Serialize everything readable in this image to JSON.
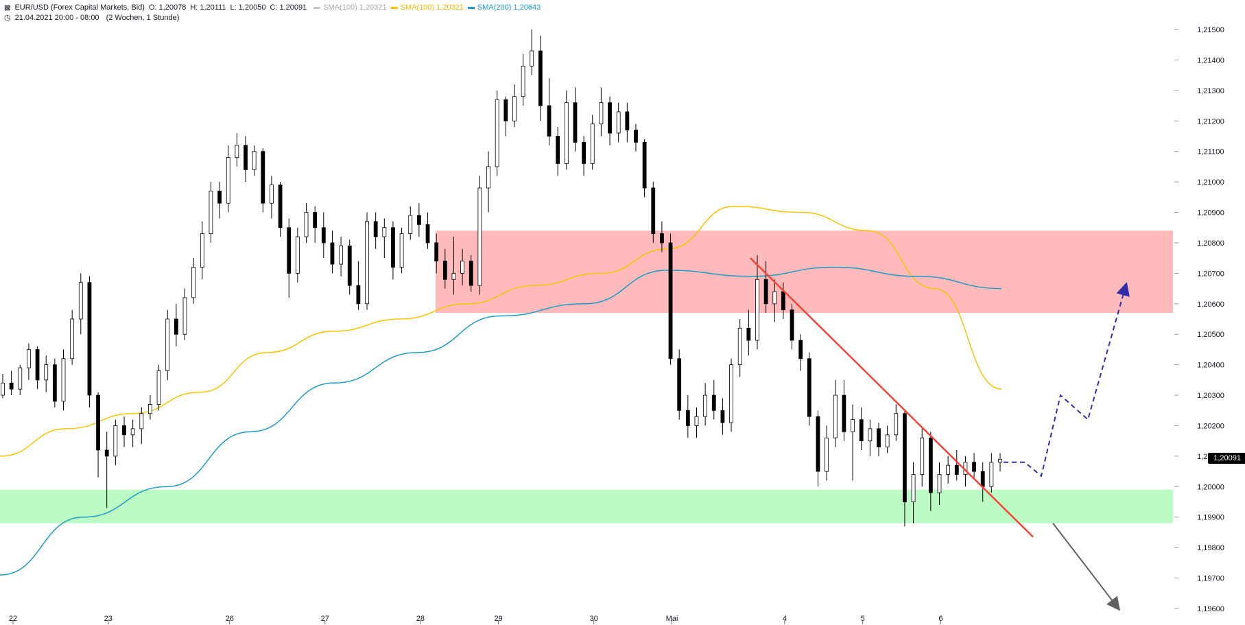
{
  "header": {
    "icon": "candlestick-icon",
    "symbol": "EUR/USD (Forex Capital Markets, Bid)",
    "o_label": "O:",
    "o_value": "1,20078",
    "h_label": "H:",
    "h_value": "1,20111",
    "l_label": "L:",
    "l_value": "1,20050",
    "c_label": "C:",
    "c_value": "1,20091",
    "indicators": [
      {
        "label": "SMA(100)",
        "value": "1,20321",
        "color": "#c8c8c8",
        "muted": true
      },
      {
        "label": "SMA(100)",
        "value": "1,20321",
        "color": "#f5c400",
        "muted": false
      },
      {
        "label": "SMA(200)",
        "value": "1,20643",
        "color": "#1a9bc4",
        "muted": false
      }
    ],
    "clock_icon": "clock-icon",
    "range": "21.04.2021 20:00 - 08:00",
    "period": "(2 Wochen, 1 Stunde)"
  },
  "price_tag": "1,20091",
  "chart_data": {
    "type": "candlestick",
    "y_axis": {
      "ylim": [
        1.1958,
        1.2155
      ],
      "ticks": [
        1.196,
        1.197,
        1.198,
        1.199,
        1.2,
        1.201,
        1.202,
        1.203,
        1.204,
        1.205,
        1.206,
        1.207,
        1.208,
        1.209,
        1.21,
        1.211,
        1.212,
        1.213,
        1.214,
        1.215
      ],
      "tick_labels": [
        "1,19600",
        "1,19700",
        "1,19800",
        "1,19900",
        "1,20000",
        "1,20100",
        "1,20200",
        "1,20300",
        "1,20400",
        "1,20500",
        "1,20600",
        "1,20700",
        "1,20800",
        "1,20900",
        "1,21000",
        "1,21100",
        "1,21200",
        "1,21300",
        "1,21400",
        "1,21500"
      ]
    },
    "x_axis": {
      "ticks": [
        "22",
        "23",
        "26",
        "27",
        "28",
        "29",
        "30",
        "Mai",
        "4",
        "5",
        "6"
      ]
    },
    "candles": [
      {
        "d": "22",
        "o": 1.203,
        "h": 1.2037,
        "l": 1.2029,
        "c": 1.2034
      },
      {
        "d": "22",
        "o": 1.2034,
        "h": 1.2038,
        "l": 1.203,
        "c": 1.2032
      },
      {
        "d": "22",
        "o": 1.2032,
        "h": 1.204,
        "l": 1.203,
        "c": 1.2039
      },
      {
        "d": "22",
        "o": 1.2039,
        "h": 1.2047,
        "l": 1.2035,
        "c": 1.2045
      },
      {
        "d": "22",
        "o": 1.2045,
        "h": 1.2046,
        "l": 1.2032,
        "c": 1.2035
      },
      {
        "d": "22",
        "o": 1.2035,
        "h": 1.2043,
        "l": 1.2031,
        "c": 1.204
      },
      {
        "d": "22",
        "o": 1.204,
        "h": 1.2042,
        "l": 1.2026,
        "c": 1.2028
      },
      {
        "d": "22",
        "o": 1.2028,
        "h": 1.2045,
        "l": 1.2025,
        "c": 1.2042
      },
      {
        "d": "22",
        "o": 1.2042,
        "h": 1.2058,
        "l": 1.204,
        "c": 1.2055
      },
      {
        "d": "22",
        "o": 1.2055,
        "h": 1.207,
        "l": 1.205,
        "c": 1.2067
      },
      {
        "d": "22",
        "o": 1.2067,
        "h": 1.2069,
        "l": 1.2026,
        "c": 1.203
      },
      {
        "d": "22",
        "o": 1.203,
        "h": 1.2031,
        "l": 1.2003,
        "c": 1.2012
      },
      {
        "d": "23",
        "o": 1.2012,
        "h": 1.2018,
        "l": 1.1993,
        "c": 1.201
      },
      {
        "d": "23",
        "o": 1.201,
        "h": 1.2022,
        "l": 1.2007,
        "c": 1.202
      },
      {
        "d": "23",
        "o": 1.202,
        "h": 1.2023,
        "l": 1.2013,
        "c": 1.2017
      },
      {
        "d": "23",
        "o": 1.2017,
        "h": 1.2022,
        "l": 1.2013,
        "c": 1.2019
      },
      {
        "d": "23",
        "o": 1.2019,
        "h": 1.2026,
        "l": 1.2014,
        "c": 1.2024
      },
      {
        "d": "23",
        "o": 1.2024,
        "h": 1.203,
        "l": 1.2022,
        "c": 1.2027
      },
      {
        "d": "23",
        "o": 1.2027,
        "h": 1.204,
        "l": 1.2025,
        "c": 1.2038
      },
      {
        "d": "23",
        "o": 1.2038,
        "h": 1.2058,
        "l": 1.2035,
        "c": 1.2055
      },
      {
        "d": "23",
        "o": 1.2055,
        "h": 1.206,
        "l": 1.2046,
        "c": 1.205
      },
      {
        "d": "23",
        "o": 1.205,
        "h": 1.2065,
        "l": 1.2048,
        "c": 1.2062
      },
      {
        "d": "23",
        "o": 1.2062,
        "h": 1.2075,
        "l": 1.206,
        "c": 1.2072
      },
      {
        "d": "23",
        "o": 1.2072,
        "h": 1.2087,
        "l": 1.2068,
        "c": 1.2083
      },
      {
        "d": "23",
        "o": 1.2083,
        "h": 1.21,
        "l": 1.208,
        "c": 1.2097
      },
      {
        "d": "23",
        "o": 1.2097,
        "h": 1.21,
        "l": 1.2088,
        "c": 1.2093
      },
      {
        "d": "26",
        "o": 1.2093,
        "h": 1.2112,
        "l": 1.209,
        "c": 1.2108
      },
      {
        "d": "26",
        "o": 1.2108,
        "h": 1.2116,
        "l": 1.2105,
        "c": 1.2112
      },
      {
        "d": "26",
        "o": 1.2112,
        "h": 1.2115,
        "l": 1.21,
        "c": 1.2104
      },
      {
        "d": "26",
        "o": 1.2104,
        "h": 1.2112,
        "l": 1.2102,
        "c": 1.211
      },
      {
        "d": "26",
        "o": 1.211,
        "h": 1.2111,
        "l": 1.209,
        "c": 1.2093
      },
      {
        "d": "26",
        "o": 1.2093,
        "h": 1.2102,
        "l": 1.2088,
        "c": 1.2099
      },
      {
        "d": "26",
        "o": 1.2099,
        "h": 1.21,
        "l": 1.2082,
        "c": 1.2085
      },
      {
        "d": "26",
        "o": 1.2085,
        "h": 1.2088,
        "l": 1.2062,
        "c": 1.207
      },
      {
        "d": "26",
        "o": 1.207,
        "h": 1.2085,
        "l": 1.2067,
        "c": 1.2082
      },
      {
        "d": "26",
        "o": 1.2082,
        "h": 1.2093,
        "l": 1.208,
        "c": 1.209
      },
      {
        "d": "26",
        "o": 1.209,
        "h": 1.2092,
        "l": 1.208,
        "c": 1.2085
      },
      {
        "d": "27",
        "o": 1.2085,
        "h": 1.209,
        "l": 1.2075,
        "c": 1.208
      },
      {
        "d": "27",
        "o": 1.208,
        "h": 1.2084,
        "l": 1.207,
        "c": 1.2073
      },
      {
        "d": "27",
        "o": 1.2073,
        "h": 1.2082,
        "l": 1.2069,
        "c": 1.2079
      },
      {
        "d": "27",
        "o": 1.2079,
        "h": 1.2081,
        "l": 1.2063,
        "c": 1.2066
      },
      {
        "d": "27",
        "o": 1.2066,
        "h": 1.2074,
        "l": 1.2058,
        "c": 1.206
      },
      {
        "d": "27",
        "o": 1.206,
        "h": 1.209,
        "l": 1.2058,
        "c": 1.2087
      },
      {
        "d": "27",
        "o": 1.2087,
        "h": 1.209,
        "l": 1.2078,
        "c": 1.2082
      },
      {
        "d": "27",
        "o": 1.2082,
        "h": 1.2088,
        "l": 1.2075,
        "c": 1.2085
      },
      {
        "d": "27",
        "o": 1.2085,
        "h": 1.2087,
        "l": 1.2068,
        "c": 1.2072
      },
      {
        "d": "27",
        "o": 1.2072,
        "h": 1.2085,
        "l": 1.207,
        "c": 1.2083
      },
      {
        "d": "27",
        "o": 1.2083,
        "h": 1.2092,
        "l": 1.2081,
        "c": 1.2089
      },
      {
        "d": "28",
        "o": 1.2089,
        "h": 1.2093,
        "l": 1.2082,
        "c": 1.2086
      },
      {
        "d": "28",
        "o": 1.2086,
        "h": 1.209,
        "l": 1.2078,
        "c": 1.208
      },
      {
        "d": "28",
        "o": 1.208,
        "h": 1.2083,
        "l": 1.207,
        "c": 1.2074
      },
      {
        "d": "28",
        "o": 1.2074,
        "h": 1.2078,
        "l": 1.2065,
        "c": 1.2068
      },
      {
        "d": "28",
        "o": 1.2068,
        "h": 1.2082,
        "l": 1.2063,
        "c": 1.207
      },
      {
        "d": "28",
        "o": 1.207,
        "h": 1.2078,
        "l": 1.2066,
        "c": 1.2074
      },
      {
        "d": "28",
        "o": 1.2074,
        "h": 1.2076,
        "l": 1.2064,
        "c": 1.2066
      },
      {
        "d": "28",
        "o": 1.2066,
        "h": 1.2102,
        "l": 1.2063,
        "c": 1.2098
      },
      {
        "d": "28",
        "o": 1.2098,
        "h": 1.211,
        "l": 1.209,
        "c": 1.2105
      },
      {
        "d": "29",
        "o": 1.2105,
        "h": 1.213,
        "l": 1.2102,
        "c": 1.2127
      },
      {
        "d": "29",
        "o": 1.2127,
        "h": 1.2128,
        "l": 1.2115,
        "c": 1.212
      },
      {
        "d": "29",
        "o": 1.212,
        "h": 1.2132,
        "l": 1.2118,
        "c": 1.2128
      },
      {
        "d": "29",
        "o": 1.2128,
        "h": 1.2142,
        "l": 1.2125,
        "c": 1.2138
      },
      {
        "d": "29",
        "o": 1.2138,
        "h": 1.215,
        "l": 1.2135,
        "c": 1.2143
      },
      {
        "d": "29",
        "o": 1.2143,
        "h": 1.2148,
        "l": 1.212,
        "c": 1.2125
      },
      {
        "d": "29",
        "o": 1.2125,
        "h": 1.2134,
        "l": 1.2112,
        "c": 1.2115
      },
      {
        "d": "29",
        "o": 1.2115,
        "h": 1.2118,
        "l": 1.2102,
        "c": 1.2106
      },
      {
        "d": "29",
        "o": 1.2106,
        "h": 1.213,
        "l": 1.2104,
        "c": 1.2126
      },
      {
        "d": "29",
        "o": 1.2126,
        "h": 1.2131,
        "l": 1.211,
        "c": 1.2113
      },
      {
        "d": "29",
        "o": 1.2113,
        "h": 1.2115,
        "l": 1.2102,
        "c": 1.2106
      },
      {
        "d": "30",
        "o": 1.2106,
        "h": 1.2122,
        "l": 1.2104,
        "c": 1.2119
      },
      {
        "d": "30",
        "o": 1.2119,
        "h": 1.2131,
        "l": 1.2115,
        "c": 1.2126
      },
      {
        "d": "30",
        "o": 1.2126,
        "h": 1.2128,
        "l": 1.2112,
        "c": 1.2116
      },
      {
        "d": "30",
        "o": 1.2116,
        "h": 1.2126,
        "l": 1.2113,
        "c": 1.2123
      },
      {
        "d": "30",
        "o": 1.2123,
        "h": 1.2126,
        "l": 1.2113,
        "c": 1.2117
      },
      {
        "d": "30",
        "o": 1.2117,
        "h": 1.2119,
        "l": 1.211,
        "c": 1.2113
      },
      {
        "d": "30",
        "o": 1.2113,
        "h": 1.2114,
        "l": 1.2095,
        "c": 1.2098
      },
      {
        "d": "30",
        "o": 1.2098,
        "h": 1.21,
        "l": 1.208,
        "c": 1.2083
      },
      {
        "d": "30",
        "o": 1.2083,
        "h": 1.2087,
        "l": 1.2077,
        "c": 1.208
      },
      {
        "d": "Mai",
        "o": 1.208,
        "h": 1.2083,
        "l": 1.204,
        "c": 1.2042
      },
      {
        "d": "Mai",
        "o": 1.2042,
        "h": 1.2045,
        "l": 1.2022,
        "c": 1.2025
      },
      {
        "d": "Mai",
        "o": 1.2025,
        "h": 1.203,
        "l": 1.2016,
        "c": 1.202
      },
      {
        "d": "Mai",
        "o": 1.202,
        "h": 1.2026,
        "l": 1.2016,
        "c": 1.2023
      },
      {
        "d": "Mai",
        "o": 1.2023,
        "h": 1.2034,
        "l": 1.202,
        "c": 1.203
      },
      {
        "d": "Mai",
        "o": 1.203,
        "h": 1.2035,
        "l": 1.2022,
        "c": 1.2025
      },
      {
        "d": "Mai",
        "o": 1.2025,
        "h": 1.2029,
        "l": 1.2017,
        "c": 1.2021
      },
      {
        "d": "Mai",
        "o": 1.2021,
        "h": 1.2042,
        "l": 1.2018,
        "c": 1.204
      },
      {
        "d": "Mai",
        "o": 1.204,
        "h": 1.2055,
        "l": 1.2036,
        "c": 1.2052
      },
      {
        "d": "Mai",
        "o": 1.2052,
        "h": 1.2058,
        "l": 1.2043,
        "c": 1.2048
      },
      {
        "d": "Mai",
        "o": 1.2048,
        "h": 1.2076,
        "l": 1.2045,
        "c": 1.2068
      },
      {
        "d": "Mai",
        "o": 1.2068,
        "h": 1.2074,
        "l": 1.2057,
        "c": 1.206
      },
      {
        "d": "Mai",
        "o": 1.206,
        "h": 1.2068,
        "l": 1.2054,
        "c": 1.2064
      },
      {
        "d": "4",
        "o": 1.2064,
        "h": 1.2067,
        "l": 1.2055,
        "c": 1.2058
      },
      {
        "d": "4",
        "o": 1.2058,
        "h": 1.206,
        "l": 1.2045,
        "c": 1.2048
      },
      {
        "d": "4",
        "o": 1.2048,
        "h": 1.205,
        "l": 1.2038,
        "c": 1.2042
      },
      {
        "d": "4",
        "o": 1.2042,
        "h": 1.2044,
        "l": 1.202,
        "c": 1.2023
      },
      {
        "d": "4",
        "o": 1.2023,
        "h": 1.2025,
        "l": 1.2,
        "c": 1.2005
      },
      {
        "d": "4",
        "o": 1.2005,
        "h": 1.202,
        "l": 1.2002,
        "c": 1.2016
      },
      {
        "d": "4",
        "o": 1.2016,
        "h": 1.2035,
        "l": 1.2013,
        "c": 1.203
      },
      {
        "d": "4",
        "o": 1.203,
        "h": 1.2035,
        "l": 1.2015,
        "c": 1.2018
      },
      {
        "d": "4",
        "o": 1.2018,
        "h": 1.2027,
        "l": 1.2002,
        "c": 1.2022
      },
      {
        "d": "5",
        "o": 1.2022,
        "h": 1.2026,
        "l": 1.2012,
        "c": 1.2015
      },
      {
        "d": "5",
        "o": 1.2015,
        "h": 1.2022,
        "l": 1.201,
        "c": 1.2019
      },
      {
        "d": "5",
        "o": 1.2019,
        "h": 1.2021,
        "l": 1.201,
        "c": 1.2013
      },
      {
        "d": "5",
        "o": 1.2013,
        "h": 1.202,
        "l": 1.2011,
        "c": 1.2017
      },
      {
        "d": "5",
        "o": 1.2017,
        "h": 1.2027,
        "l": 1.2015,
        "c": 1.2024
      },
      {
        "d": "5",
        "o": 1.2024,
        "h": 1.2025,
        "l": 1.1987,
        "c": 1.1995
      },
      {
        "d": "5",
        "o": 1.1995,
        "h": 1.2008,
        "l": 1.1988,
        "c": 1.2004
      },
      {
        "d": "5",
        "o": 1.2004,
        "h": 1.2019,
        "l": 1.2,
        "c": 1.2016
      },
      {
        "d": "5",
        "o": 1.2016,
        "h": 1.2018,
        "l": 1.1992,
        "c": 1.1998
      },
      {
        "d": "6",
        "o": 1.1998,
        "h": 1.2008,
        "l": 1.1994,
        "c": 1.2004
      },
      {
        "d": "6",
        "o": 1.2004,
        "h": 1.201,
        "l": 1.2001,
        "c": 1.2007
      },
      {
        "d": "6",
        "o": 1.2007,
        "h": 1.2012,
        "l": 1.2002,
        "c": 1.2004
      },
      {
        "d": "6",
        "o": 1.2004,
        "h": 1.201,
        "l": 1.2,
        "c": 1.2008
      },
      {
        "d": "6",
        "o": 1.2008,
        "h": 1.2011,
        "l": 1.2003,
        "c": 1.2005
      },
      {
        "d": "6",
        "o": 1.2005,
        "h": 1.2008,
        "l": 1.1995,
        "c": 1.2
      },
      {
        "d": "6",
        "o": 1.2,
        "h": 1.2011,
        "l": 1.1998,
        "c": 1.2008
      },
      {
        "d": "6",
        "o": 1.2008,
        "h": 1.2011,
        "l": 1.2005,
        "c": 1.2009
      }
    ],
    "sma_yellow": [
      1.201,
      1.2019,
      1.2024,
      1.2031,
      1.2044,
      1.2051,
      1.2055,
      1.206,
      1.2066,
      1.207,
      1.2078,
      1.2092,
      1.209,
      1.2084,
      1.2065,
      1.2032
    ],
    "sma_blue": [
      1.1971,
      1.199,
      1.2,
      1.2018,
      1.2034,
      1.2044,
      1.2056,
      1.206,
      1.2071,
      1.2069,
      1.2072,
      1.2069,
      1.2065
    ],
    "zones": [
      {
        "name": "resistance",
        "from": 1.2057,
        "to": 1.2084,
        "color": "#ffbbbb"
      },
      {
        "name": "support",
        "from": 1.1988,
        "to": 1.1999,
        "color": "#bdfbc4"
      }
    ],
    "trendline_color": "#f44336",
    "bull_projection_color": "#2e2ea8",
    "bear_projection_color": "#606060",
    "last_price": 1.20091
  }
}
